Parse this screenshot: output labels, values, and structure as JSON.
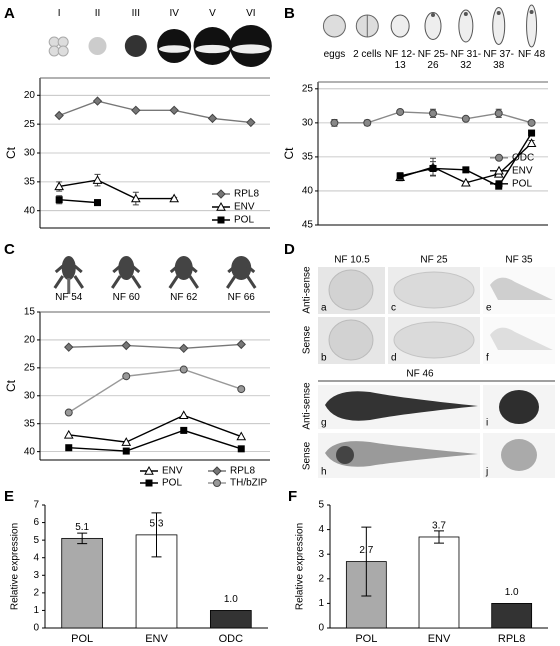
{
  "chart_data": [
    {
      "type": "line",
      "label": "A",
      "categories": [
        "I",
        "II",
        "III",
        "IV",
        "V",
        "VI"
      ],
      "ylabel": "Ct",
      "ylim": [
        17,
        43
      ],
      "y_inverted": true,
      "yticks": [
        20,
        25,
        30,
        35,
        40
      ],
      "grid": true,
      "legend": "lower right",
      "series": [
        {
          "name": "RPL8",
          "color": "#777777",
          "marker": "diamond",
          "values": [
            23.5,
            21,
            22.6,
            22.6,
            24,
            24.7
          ]
        },
        {
          "name": "ENV",
          "color": "#000000",
          "marker": "triangle",
          "values": [
            35.8,
            34.7,
            37.9,
            37.9,
            null,
            null
          ],
          "errors": [
            0.8,
            1,
            1.1,
            0.2,
            null,
            null
          ]
        },
        {
          "name": "POL",
          "color": "#000000",
          "marker": "square",
          "values": [
            38.1,
            38.6,
            null,
            null,
            null,
            null
          ],
          "errors": [
            0.7,
            0.5,
            null,
            null,
            null,
            null
          ]
        }
      ]
    },
    {
      "type": "line",
      "label": "B",
      "categories": [
        "eggs",
        "2 cells",
        "NF 12-13",
        "NF 25-26",
        "NF 31-32",
        "NF 37-38",
        "NF 48"
      ],
      "ylabel": "Ct",
      "ylim": [
        24,
        45
      ],
      "y_inverted": true,
      "yticks": [
        25,
        30,
        35,
        40,
        45
      ],
      "grid": true,
      "legend": "right",
      "series": [
        {
          "name": "ODC",
          "color": "#888888",
          "marker": "circle",
          "values": [
            30,
            30,
            28.4,
            28.6,
            29.4,
            28.6,
            30
          ],
          "errors": [
            0.5,
            0.4,
            0.3,
            0.6,
            0.3,
            0.6,
            0.3
          ]
        },
        {
          "name": "ENV",
          "color": "#000000",
          "marker": "triangle",
          "values": [
            null,
            null,
            38,
            36.5,
            38.8,
            37.5,
            33
          ],
          "errors": [
            null,
            null,
            0.5,
            1.3,
            0.2,
            0.3,
            0.4
          ]
        },
        {
          "name": "POL",
          "color": "#000000",
          "marker": "square",
          "values": [
            null,
            null,
            37.8,
            36.7,
            36.9,
            39.3,
            31.5
          ],
          "errors": [
            null,
            null,
            0.5,
            1,
            null,
            null,
            0.4
          ]
        }
      ]
    },
    {
      "type": "line",
      "label": "C",
      "categories": [
        "NF 54",
        "NF 60",
        "NF 62",
        "NF 66"
      ],
      "ylabel": "Ct",
      "ylim": [
        15,
        41.5
      ],
      "y_inverted": true,
      "yticks": [
        15,
        20,
        25,
        30,
        35,
        40
      ],
      "grid": true,
      "legend": "below",
      "series": [
        {
          "name": "ENV",
          "color": "#000000",
          "marker": "triangle",
          "values": [
            37,
            38.3,
            33.5,
            37.3
          ]
        },
        {
          "name": "RPL8",
          "color": "#777777",
          "marker": "diamond",
          "values": [
            21.3,
            21,
            21.5,
            20.8
          ]
        },
        {
          "name": "POL",
          "color": "#000000",
          "marker": "square",
          "values": [
            39.3,
            39.9,
            36.2,
            39.5
          ]
        },
        {
          "name": "TH/bZIP",
          "color": "#999999",
          "marker": "circle",
          "values": [
            33,
            26.5,
            25.3,
            28.8
          ]
        }
      ]
    },
    {
      "type": "bar",
      "label": "E",
      "categories": [
        "POL",
        "ENV",
        "ODC"
      ],
      "values": [
        5.1,
        5.3,
        1.0
      ],
      "value_labels": [
        "5.1",
        "5.3",
        "1.0"
      ],
      "errors": [
        0.3,
        1.25,
        null
      ],
      "colors": [
        "#aaaaaa",
        "#ffffff",
        "#333333"
      ],
      "ylabel": "Relative expression",
      "ylim": [
        0,
        7
      ],
      "yticks": [
        0,
        1,
        2,
        3,
        4,
        5,
        6,
        7
      ]
    },
    {
      "type": "bar",
      "label": "F",
      "categories": [
        "POL",
        "ENV",
        "RPL8"
      ],
      "values": [
        2.7,
        3.7,
        1.0
      ],
      "value_labels": [
        "2.7",
        "3.7",
        "1.0"
      ],
      "errors": [
        1.4,
        0.25,
        null
      ],
      "colors": [
        "#aaaaaa",
        "#ffffff",
        "#333333"
      ],
      "ylabel": "Relative expression",
      "ylim": [
        0,
        5
      ],
      "yticks": [
        0,
        1,
        2,
        3,
        4,
        5
      ]
    }
  ],
  "panel_d": {
    "label": "D",
    "stages": [
      "NF 10.5",
      "NF 25",
      "NF 35",
      "NF 46"
    ],
    "row_labels": [
      "Anti-sense",
      "Sense",
      "Anti-sense",
      "Sense"
    ],
    "image_letters": [
      "a",
      "b",
      "c",
      "d",
      "e",
      "f",
      "g",
      "h",
      "i",
      "j"
    ]
  }
}
